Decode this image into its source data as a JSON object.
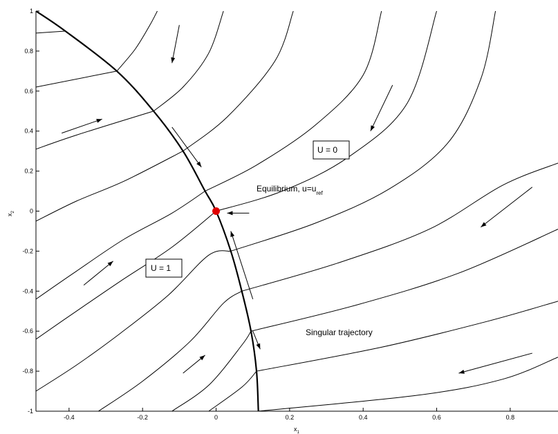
{
  "chart_data": {
    "type": "line",
    "title": "",
    "xlabel": "x",
    "xlabel_sub": "1",
    "ylabel": "x",
    "ylabel_sub": "2",
    "xlim": [
      -0.49,
      0.93
    ],
    "ylim": [
      -1.0,
      1.0
    ],
    "xticks": [
      -0.4,
      -0.2,
      0,
      0.2,
      0.4,
      0.6,
      0.8
    ],
    "xtick_labels": [
      "-0.4",
      "-0.2",
      "0",
      "0.2",
      "0.4",
      "0.6",
      "0.8"
    ],
    "yticks": [
      -1,
      -0.8,
      -0.6,
      -0.4,
      -0.2,
      0,
      0.2,
      0.4,
      0.6,
      0.8,
      1
    ],
    "ytick_labels": [
      "-1",
      "-0.8",
      "-0.6",
      "-0.4",
      "-0.2",
      "0",
      "0.2",
      "0.4",
      "0.6",
      "0.8",
      "1"
    ],
    "grid": false,
    "legend": "none",
    "colors": {
      "axes": "#000000",
      "curves": "#000000",
      "equilibrium": "#e00000"
    },
    "switching_curve": [
      [
        -0.49,
        1.0
      ],
      [
        -0.41,
        0.9
      ],
      [
        -0.27,
        0.7
      ],
      [
        -0.17,
        0.5
      ],
      [
        -0.09,
        0.3
      ],
      [
        -0.03,
        0.1
      ],
      [
        0.0,
        0.0
      ],
      [
        0.04,
        -0.2
      ],
      [
        0.07,
        -0.4
      ],
      [
        0.095,
        -0.6
      ],
      [
        0.11,
        -0.8
      ],
      [
        0.115,
        -1.0
      ]
    ],
    "u1_trajectories": [
      [
        [
          -0.49,
          0.89
        ],
        [
          -0.41,
          0.9
        ]
      ],
      [
        [
          -0.49,
          0.62
        ],
        [
          -0.27,
          0.7
        ]
      ],
      [
        [
          -0.49,
          0.31
        ],
        [
          -0.38,
          0.38
        ],
        [
          -0.17,
          0.5
        ]
      ],
      [
        [
          -0.49,
          -0.05
        ],
        [
          -0.38,
          0.05
        ],
        [
          -0.25,
          0.15
        ],
        [
          -0.09,
          0.3
        ]
      ],
      [
        [
          -0.49,
          -0.44
        ],
        [
          -0.38,
          -0.3
        ],
        [
          -0.25,
          -0.14
        ],
        [
          -0.12,
          -0.01
        ],
        [
          -0.03,
          0.1
        ]
      ],
      [
        [
          -0.49,
          -0.64
        ],
        [
          -0.38,
          -0.5
        ],
        [
          -0.26,
          -0.35
        ],
        [
          -0.12,
          -0.18
        ],
        [
          0.0,
          0.0
        ]
      ],
      [
        [
          -0.49,
          -0.9
        ],
        [
          -0.38,
          -0.77
        ],
        [
          -0.26,
          -0.61
        ],
        [
          -0.13,
          -0.42
        ],
        [
          -0.02,
          -0.22
        ],
        [
          0.04,
          -0.2
        ]
      ],
      [
        [
          -0.32,
          -1.0
        ],
        [
          -0.2,
          -0.85
        ],
        [
          -0.07,
          -0.65
        ],
        [
          0.02,
          -0.46
        ],
        [
          0.07,
          -0.4
        ]
      ],
      [
        [
          -0.12,
          -1.0
        ],
        [
          -0.02,
          -0.87
        ],
        [
          0.07,
          -0.67
        ],
        [
          0.095,
          -0.6
        ]
      ],
      [
        [
          -0.02,
          -1.0
        ],
        [
          0.07,
          -0.88
        ],
        [
          0.11,
          -0.8
        ]
      ]
    ],
    "u0_trajectories": [
      [
        [
          -0.27,
          0.7
        ],
        [
          -0.22,
          0.81
        ],
        [
          -0.18,
          0.93
        ],
        [
          -0.16,
          1.0
        ]
      ],
      [
        [
          -0.17,
          0.5
        ],
        [
          -0.09,
          0.62
        ],
        [
          -0.02,
          0.79
        ],
        [
          0.02,
          1.0
        ]
      ],
      [
        [
          -0.09,
          0.3
        ],
        [
          0.03,
          0.47
        ],
        [
          0.16,
          0.75
        ],
        [
          0.21,
          1.0
        ]
      ],
      [
        [
          -0.03,
          0.1
        ],
        [
          0.11,
          0.23
        ],
        [
          0.27,
          0.43
        ],
        [
          0.4,
          0.68
        ],
        [
          0.45,
          1.0
        ]
      ],
      [
        [
          0.0,
          0.0
        ],
        [
          0.18,
          0.1
        ],
        [
          0.36,
          0.27
        ],
        [
          0.52,
          0.54
        ],
        [
          0.6,
          1.0
        ]
      ],
      [
        [
          0.04,
          -0.2
        ],
        [
          0.27,
          -0.06
        ],
        [
          0.47,
          0.11
        ],
        [
          0.63,
          0.34
        ],
        [
          0.72,
          0.66
        ],
        [
          0.76,
          1.0
        ]
      ],
      [
        [
          0.07,
          -0.4
        ],
        [
          0.33,
          -0.26
        ],
        [
          0.58,
          -0.09
        ],
        [
          0.78,
          0.13
        ],
        [
          0.93,
          0.24
        ]
      ],
      [
        [
          0.095,
          -0.6
        ],
        [
          0.38,
          -0.47
        ],
        [
          0.66,
          -0.31
        ],
        [
          0.93,
          -0.09
        ]
      ],
      [
        [
          0.11,
          -0.8
        ],
        [
          0.45,
          -0.68
        ],
        [
          0.74,
          -0.55
        ],
        [
          0.93,
          -0.45
        ]
      ],
      [
        [
          0.115,
          -1.0
        ],
        [
          0.55,
          -0.92
        ],
        [
          0.78,
          -0.84
        ],
        [
          0.93,
          -0.73
        ]
      ]
    ],
    "equilibrium_point": [
      0.0,
      0.0
    ],
    "arrows": [
      [
        [
          -0.1,
          0.93
        ],
        [
          -0.12,
          0.74
        ]
      ],
      [
        [
          -0.42,
          0.39
        ],
        [
          -0.31,
          0.46
        ]
      ],
      [
        [
          -0.12,
          0.42
        ],
        [
          -0.04,
          0.22
        ]
      ],
      [
        [
          0.48,
          0.63
        ],
        [
          0.42,
          0.4
        ]
      ],
      [
        [
          0.86,
          0.12
        ],
        [
          0.72,
          -0.08
        ]
      ],
      [
        [
          0.1,
          -0.44
        ],
        [
          0.04,
          -0.1
        ]
      ],
      [
        [
          -0.36,
          -0.37
        ],
        [
          -0.28,
          -0.25
        ]
      ],
      [
        [
          -0.09,
          -0.81
        ],
        [
          -0.03,
          -0.72
        ]
      ],
      [
        [
          0.86,
          -0.71
        ],
        [
          0.66,
          -0.81
        ]
      ],
      [
        [
          0.1,
          -0.6
        ],
        [
          0.12,
          -0.69
        ]
      ],
      [
        [
          0.09,
          -0.01
        ],
        [
          0.03,
          -0.01
        ]
      ]
    ],
    "annotations": {
      "u0_box": "U = 0",
      "u1_box": "U = 1",
      "equilibrium_label": "Equilibrium, u=u",
      "equilibrium_sub": "ref",
      "singular_label": "Singular trajectory"
    }
  }
}
